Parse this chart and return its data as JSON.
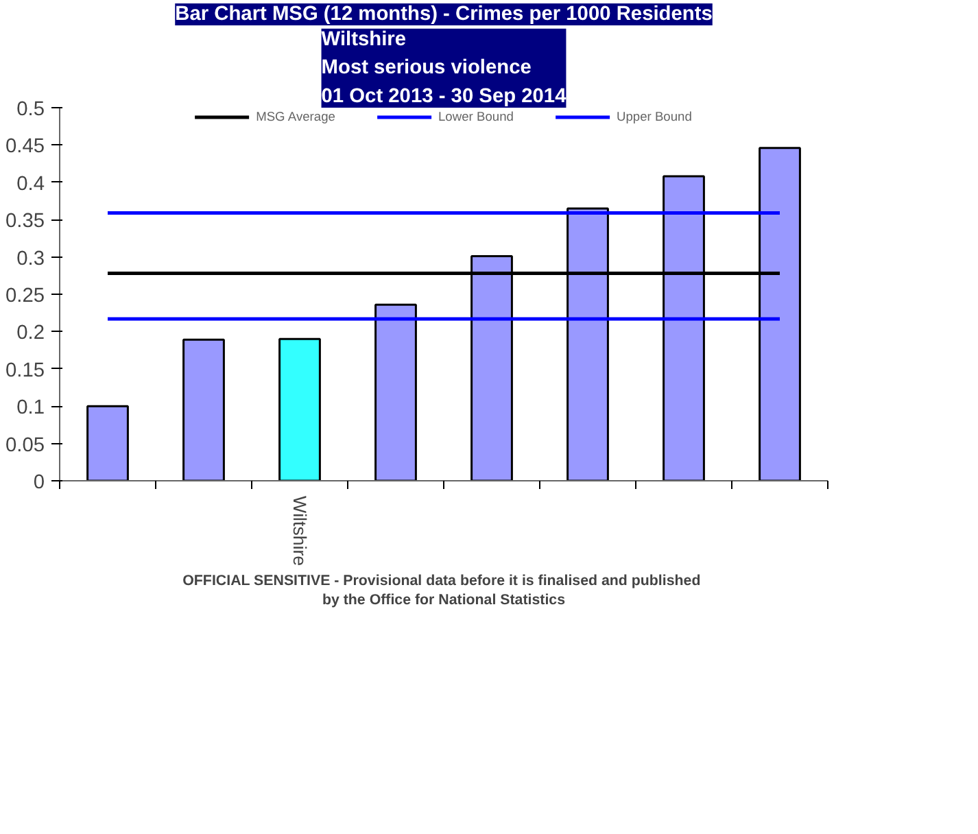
{
  "chart_data": {
    "type": "bar",
    "title": "Bar Chart MSG (12 months) - Crimes per 1000 Residents",
    "subtitle": "Wiltshire\nMost serious violence\n01 Oct 2013 - 30 Sep 2014",
    "categories": [
      null,
      null,
      "Wiltshire",
      null,
      null,
      null,
      null,
      null
    ],
    "series": [
      {
        "colors": [
          "#9999ff",
          "#9999ff",
          "#33ffff",
          "#9999ff",
          "#9999ff",
          "#9999ff",
          "#9999ff",
          "#9999ff"
        ],
        "values": [
          0.1,
          0.189,
          0.19,
          0.236,
          0.301,
          0.365,
          0.408,
          0.446
        ]
      },
      {
        "type": "line",
        "name": "MSG Average",
        "color": "#000000",
        "values": [
          0.278,
          0.278,
          0.278,
          0.278,
          0.278,
          0.278,
          0.278,
          0.278
        ]
      },
      {
        "type": "line",
        "name": "Lower Bound",
        "color": "#0000ff",
        "values": [
          0.217,
          0.217,
          0.217,
          0.217,
          0.217,
          0.217,
          0.217,
          0.217
        ]
      },
      {
        "type": "line",
        "name": "Upper Bound",
        "color": "#0000ff",
        "values": [
          0.359,
          0.359,
          0.359,
          0.359,
          0.359,
          0.359,
          0.359,
          0.359
        ]
      }
    ],
    "ylim": [
      0,
      0.5
    ],
    "yticks": [
      0,
      0.05,
      0.1,
      0.15,
      0.2,
      0.25,
      0.3,
      0.35,
      0.4,
      0.45,
      0.5
    ],
    "grid": false,
    "legend": "top",
    "annotations": [
      "OFFICIAL SENSITIVE  - Provisional data before it is finalised and published",
      "by the Office for National Statistics"
    ]
  }
}
